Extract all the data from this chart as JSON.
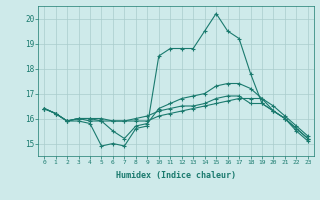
{
  "xlabel": "Humidex (Indice chaleur)",
  "x": [
    0,
    1,
    2,
    3,
    4,
    5,
    6,
    7,
    8,
    9,
    10,
    11,
    12,
    13,
    14,
    15,
    16,
    17,
    18,
    19,
    20,
    21,
    22,
    23
  ],
  "line1": [
    16.4,
    16.2,
    15.9,
    15.9,
    15.8,
    14.9,
    15.0,
    14.9,
    15.6,
    15.7,
    18.5,
    18.8,
    18.8,
    18.8,
    19.5,
    20.2,
    19.5,
    19.2,
    17.8,
    16.6,
    16.3,
    16.0,
    15.5,
    15.1
  ],
  "line2": [
    16.4,
    16.2,
    15.9,
    16.0,
    15.9,
    15.9,
    15.9,
    15.9,
    15.9,
    15.9,
    16.1,
    16.2,
    16.3,
    16.4,
    16.5,
    16.6,
    16.7,
    16.8,
    16.8,
    16.8,
    16.3,
    16.0,
    15.6,
    15.2
  ],
  "line3": [
    16.4,
    16.2,
    15.9,
    16.0,
    16.0,
    16.0,
    15.9,
    15.9,
    16.0,
    16.1,
    16.3,
    16.4,
    16.5,
    16.5,
    16.6,
    16.8,
    16.9,
    16.9,
    16.6,
    16.6,
    16.3,
    16.0,
    15.6,
    15.2
  ],
  "line4": [
    16.4,
    16.2,
    15.9,
    16.0,
    16.0,
    15.9,
    15.5,
    15.2,
    15.7,
    15.8,
    16.4,
    16.6,
    16.8,
    16.9,
    17.0,
    17.3,
    17.4,
    17.4,
    17.2,
    16.8,
    16.5,
    16.1,
    15.7,
    15.3
  ],
  "line_color": "#1a7a6e",
  "bg_color": "#ceeaea",
  "grid_color": "#aacccc",
  "ylim": [
    14.5,
    20.5
  ],
  "yticks": [
    15,
    16,
    17,
    18,
    19,
    20
  ],
  "xticks": [
    0,
    1,
    2,
    3,
    4,
    5,
    6,
    7,
    8,
    9,
    10,
    11,
    12,
    13,
    14,
    15,
    16,
    17,
    18,
    19,
    20,
    21,
    22,
    23
  ]
}
